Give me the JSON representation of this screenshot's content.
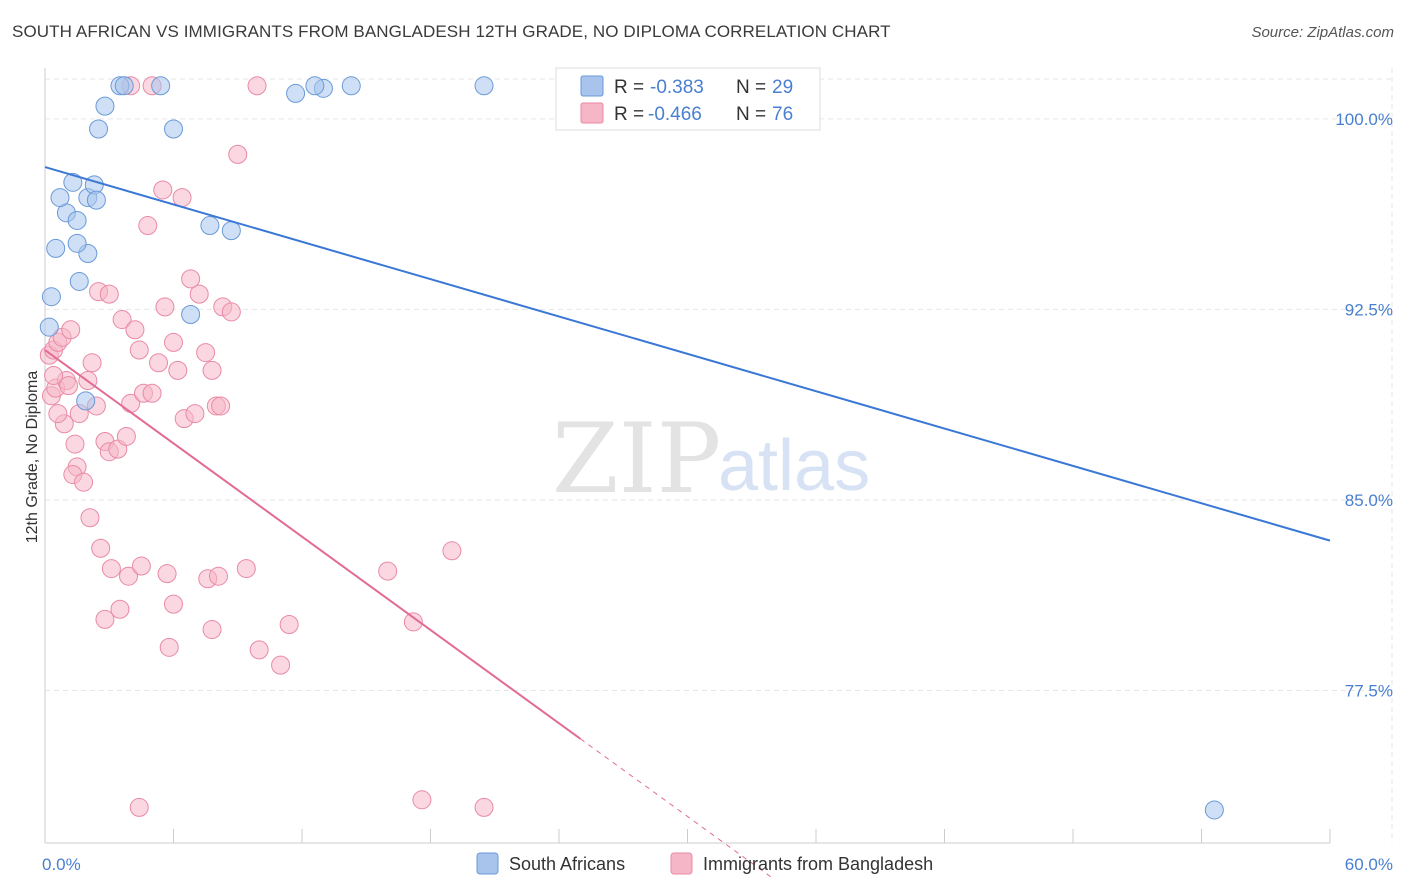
{
  "title": "SOUTH AFRICAN VS IMMIGRANTS FROM BANGLADESH 12TH GRADE, NO DIPLOMA CORRELATION CHART",
  "source": "Source: ZipAtlas.com",
  "watermark": {
    "zip": "ZIP",
    "atlas": "atlas"
  },
  "legend_top": [
    {
      "r_label": "R =",
      "r_value": "-0.383",
      "n_label": "N =",
      "n_value": "29",
      "color": "#a8c4ec"
    },
    {
      "r_label": "R =",
      "r_value": "-0.466",
      "n_label": "N =",
      "n_value": "76",
      "color": "#f5b7c8"
    }
  ],
  "colors": {
    "blue_fill": "#a8c4ec",
    "blue_stroke": "#6a9ad8",
    "blue_line": "#3a78d6",
    "pink_fill": "#f5b7c8",
    "pink_stroke": "#e98aa6",
    "pink_line": "#e26b94",
    "grid": "#e6e6e6",
    "tick_text": "#4a7fd0"
  },
  "chart_data": {
    "type": "scatter",
    "title": "SOUTH AFRICAN VS IMMIGRANTS FROM BANGLADESH 12TH GRADE, NO DIPLOMA CORRELATION CHART",
    "xlabel": "",
    "ylabel": "12th Grade, No Diploma",
    "xlim": [
      0,
      60
    ],
    "ylim": [
      71.5,
      102.0
    ],
    "x_tick_labels": [
      {
        "value": 0,
        "label": "0.0%"
      },
      {
        "value": 60,
        "label": "60.0%"
      }
    ],
    "y_ticks": [
      {
        "value": 100.0,
        "label": "100.0%"
      },
      {
        "value": 92.5,
        "label": "92.5%"
      },
      {
        "value": 85.0,
        "label": "85.0%"
      },
      {
        "value": 77.5,
        "label": "77.5%"
      }
    ],
    "series": [
      {
        "name": "South Africans",
        "color": "#a8c4ec",
        "r": -0.383,
        "n": 29,
        "trend": {
          "x0": 0,
          "y0": 98.1,
          "x1": 60,
          "y1": 83.4
        },
        "points": [
          [
            0.3,
            93.0
          ],
          [
            0.5,
            94.9
          ],
          [
            1.0,
            96.3
          ],
          [
            0.7,
            96.9
          ],
          [
            1.3,
            97.5
          ],
          [
            1.5,
            96.0
          ],
          [
            1.6,
            93.6
          ],
          [
            2.0,
            96.9
          ],
          [
            2.3,
            97.4
          ],
          [
            2.5,
            99.6
          ],
          [
            2.8,
            100.5
          ],
          [
            2.0,
            94.7
          ],
          [
            2.4,
            96.8
          ],
          [
            3.5,
            101.3
          ],
          [
            3.7,
            101.3
          ],
          [
            5.4,
            101.3
          ],
          [
            6.0,
            99.6
          ],
          [
            7.7,
            95.8
          ],
          [
            8.7,
            95.6
          ],
          [
            1.5,
            95.1
          ],
          [
            1.9,
            88.9
          ],
          [
            6.8,
            92.3
          ],
          [
            13.0,
            101.2
          ],
          [
            12.6,
            101.3
          ],
          [
            11.7,
            101.0
          ],
          [
            14.3,
            101.3
          ],
          [
            20.5,
            101.3
          ],
          [
            54.6,
            72.8
          ],
          [
            0.2,
            91.8
          ]
        ]
      },
      {
        "name": "Immigrants from Bangladesh",
        "color": "#f5b7c8",
        "r": -0.466,
        "n": 76,
        "trend": {
          "x0": 0,
          "y0": 90.9,
          "x1": 25.0,
          "y1": 75.6
        },
        "trend_dashed": {
          "x0": 25.0,
          "y0": 75.6,
          "x1": 34.0,
          "y1": 70.1
        },
        "points": [
          [
            0.2,
            90.7
          ],
          [
            0.4,
            90.9
          ],
          [
            0.3,
            89.1
          ],
          [
            0.5,
            89.4
          ],
          [
            0.6,
            91.2
          ],
          [
            0.8,
            91.4
          ],
          [
            1.0,
            89.7
          ],
          [
            1.2,
            91.7
          ],
          [
            0.9,
            88.0
          ],
          [
            1.4,
            87.2
          ],
          [
            1.5,
            86.3
          ],
          [
            1.3,
            86.0
          ],
          [
            1.6,
            88.4
          ],
          [
            2.0,
            89.7
          ],
          [
            2.2,
            90.4
          ],
          [
            2.4,
            88.7
          ],
          [
            2.8,
            87.3
          ],
          [
            3.0,
            86.9
          ],
          [
            3.4,
            87.0
          ],
          [
            3.8,
            87.5
          ],
          [
            4.0,
            88.8
          ],
          [
            4.4,
            90.9
          ],
          [
            4.6,
            89.2
          ],
          [
            5.0,
            89.2
          ],
          [
            5.3,
            90.4
          ],
          [
            5.6,
            92.6
          ],
          [
            6.0,
            91.2
          ],
          [
            6.2,
            90.1
          ],
          [
            6.5,
            88.2
          ],
          [
            7.0,
            88.4
          ],
          [
            7.5,
            90.8
          ],
          [
            7.8,
            90.1
          ],
          [
            8.0,
            88.7
          ],
          [
            8.2,
            88.7
          ],
          [
            8.3,
            92.6
          ],
          [
            8.7,
            92.4
          ],
          [
            2.5,
            93.2
          ],
          [
            3.0,
            93.1
          ],
          [
            3.6,
            92.1
          ],
          [
            4.2,
            91.7
          ],
          [
            5.5,
            97.2
          ],
          [
            6.4,
            96.9
          ],
          [
            7.2,
            93.1
          ],
          [
            6.8,
            93.7
          ],
          [
            4.8,
            95.8
          ],
          [
            9.0,
            98.6
          ],
          [
            9.9,
            101.3
          ],
          [
            4.0,
            101.3
          ],
          [
            5.0,
            101.3
          ],
          [
            1.8,
            85.7
          ],
          [
            2.1,
            84.3
          ],
          [
            2.6,
            83.1
          ],
          [
            3.1,
            82.3
          ],
          [
            3.9,
            82.0
          ],
          [
            4.5,
            82.4
          ],
          [
            5.7,
            82.1
          ],
          [
            6.0,
            80.9
          ],
          [
            7.6,
            81.9
          ],
          [
            8.1,
            82.0
          ],
          [
            9.4,
            82.3
          ],
          [
            10.0,
            79.1
          ],
          [
            11.0,
            78.5
          ],
          [
            11.4,
            80.1
          ],
          [
            16.0,
            82.2
          ],
          [
            17.2,
            80.2
          ],
          [
            19.0,
            83.0
          ],
          [
            20.5,
            72.9
          ],
          [
            17.6,
            73.2
          ],
          [
            4.4,
            72.9
          ],
          [
            5.8,
            79.2
          ],
          [
            7.8,
            79.9
          ],
          [
            3.5,
            80.7
          ],
          [
            2.8,
            80.3
          ],
          [
            1.1,
            89.5
          ],
          [
            0.6,
            88.4
          ],
          [
            0.4,
            89.9
          ]
        ]
      }
    ],
    "legend": "top-center",
    "bottom_legend": [
      "South Africans",
      "Immigrants from Bangladesh"
    ]
  }
}
